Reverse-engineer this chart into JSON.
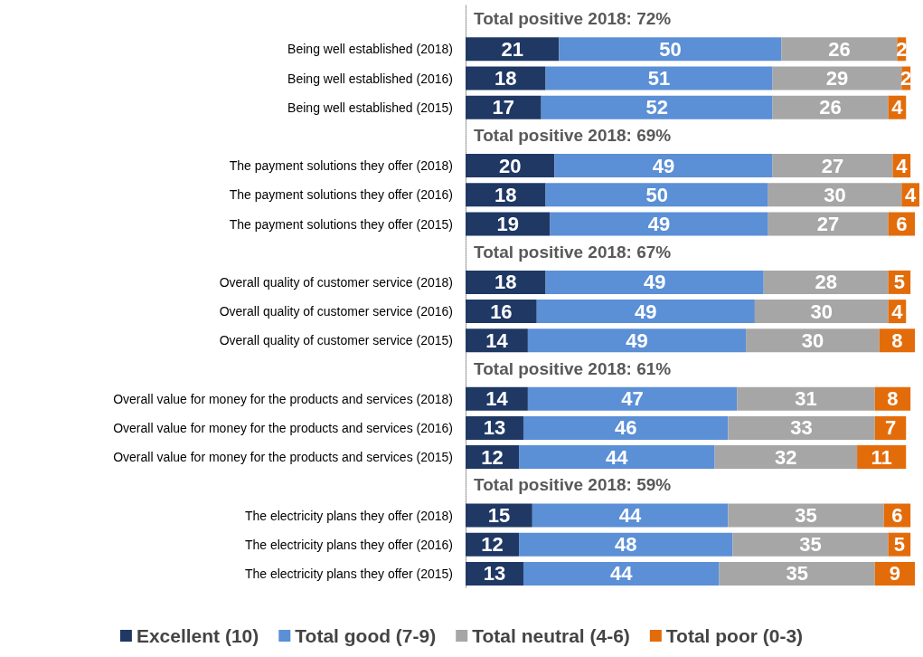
{
  "chart_data": {
    "type": "bar",
    "orientation": "horizontal",
    "stacked": true,
    "data_labels": true,
    "legend": "bottom",
    "tick_labels": "y",
    "grid": false,
    "categories": [
      null,
      "Being well established (2018)",
      "Being well established (2016)",
      "Being well established (2015)",
      null,
      "The payment solutions they offer (2018)",
      "The payment solutions they offer (2016)",
      "The payment solutions they offer (2015)",
      null,
      "Overall quality of customer service (2018)",
      "Overall quality of customer service (2016)",
      "Overall quality of customer service (2015)",
      null,
      "Overall value for money for the products and services (2018)",
      "Overall value for money for the products and services (2016)",
      "Overall value for money for the products and services (2015)",
      null,
      "The electricity plans they offer (2018)",
      "The electricity plans they offer (2016)",
      "The electricity plans they offer (2015)"
    ],
    "series": [
      {
        "name": "Excellent (10)",
        "color": "#1f3864",
        "values": [
          null,
          21,
          18,
          17,
          null,
          20,
          18,
          19,
          null,
          18,
          16,
          14,
          null,
          14,
          13,
          12,
          null,
          15,
          12,
          13
        ]
      },
      {
        "name": "Total good (7-9)",
        "color": "#5b8fd6",
        "values": [
          null,
          50,
          51,
          52,
          null,
          49,
          50,
          49,
          null,
          49,
          49,
          49,
          null,
          47,
          46,
          44,
          null,
          44,
          48,
          44
        ]
      },
      {
        "name": "Total neutral (4-6)",
        "color": "#a6a6a6",
        "values": [
          null,
          26,
          29,
          26,
          null,
          27,
          30,
          27,
          null,
          28,
          30,
          30,
          null,
          31,
          33,
          32,
          null,
          35,
          35,
          35
        ]
      },
      {
        "name": "Total poor (0-3)",
        "color": "#e36c0a",
        "values": [
          null,
          2,
          2,
          4,
          null,
          4,
          4,
          6,
          null,
          5,
          4,
          8,
          null,
          8,
          7,
          11,
          null,
          6,
          5,
          9
        ]
      }
    ],
    "annotations": [
      "Total positive 2018: 72%",
      "Total positive 2018: 69%",
      "Total positive 2018: 67%",
      "Total positive 2018: 61%",
      "Total positive 2018: 59%"
    ]
  }
}
